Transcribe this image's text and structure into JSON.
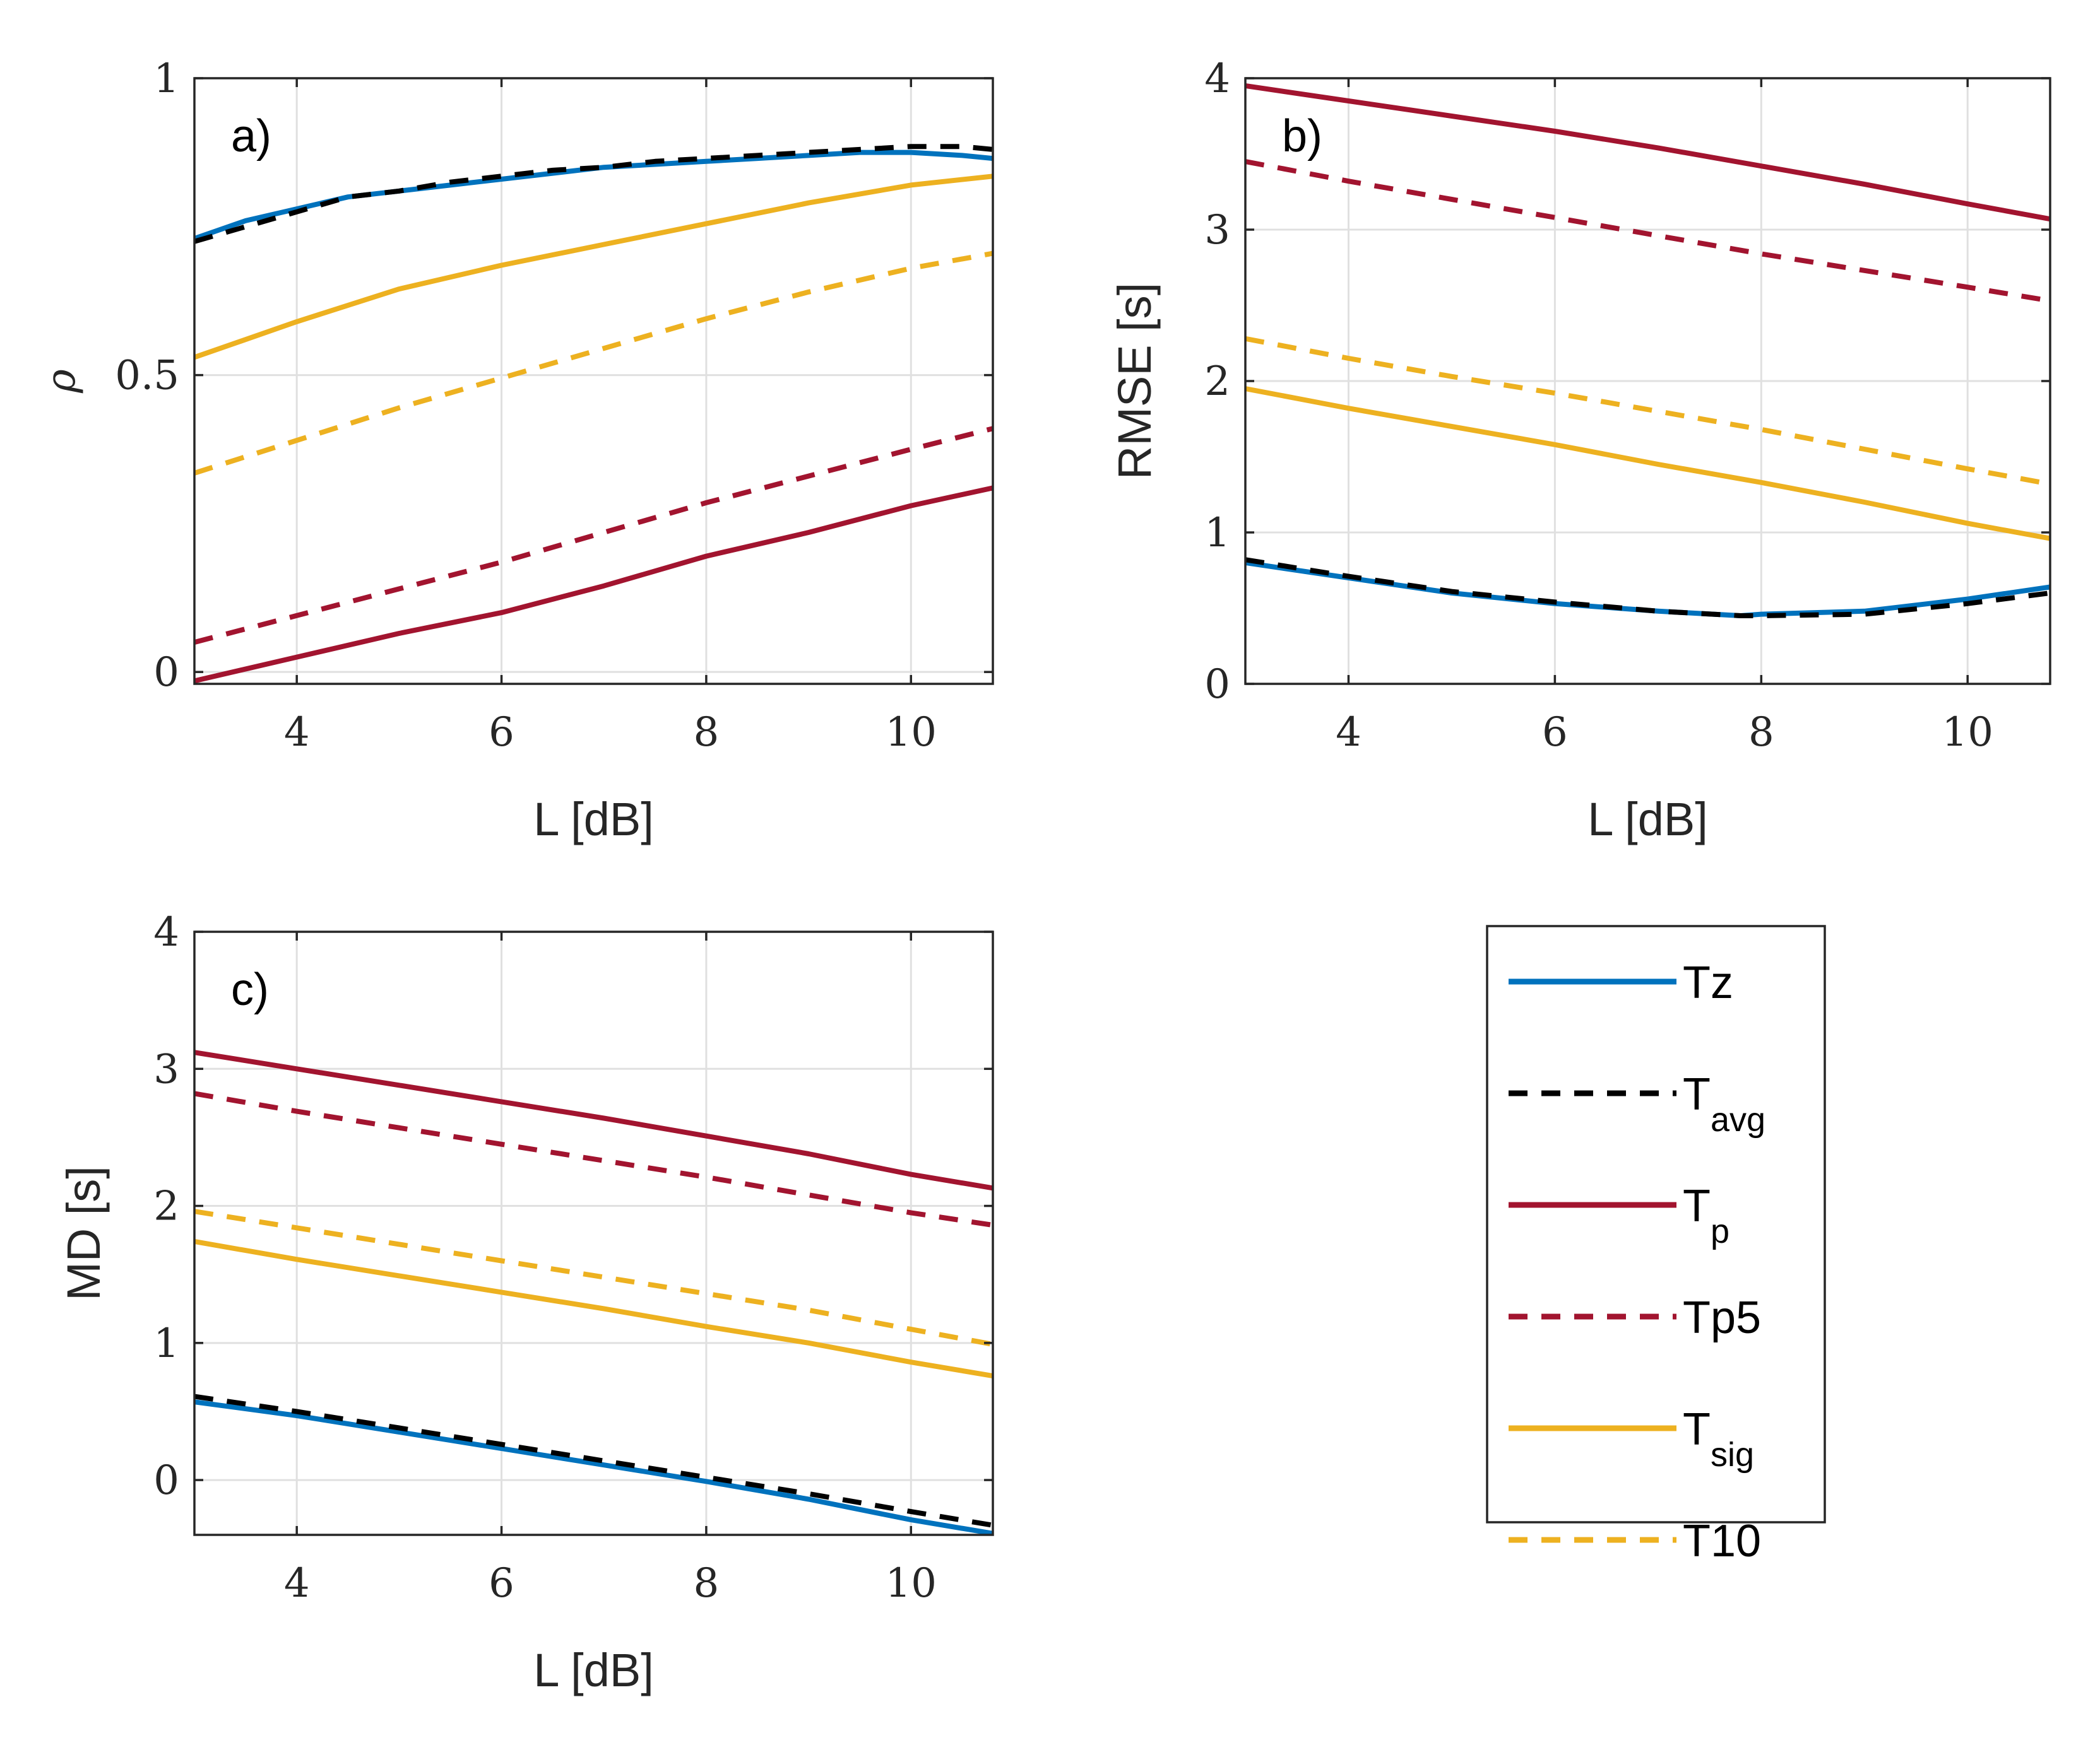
{
  "colors": {
    "Tz": "#0072BD",
    "Tavg": "#000000",
    "Tp": "#A2142F",
    "Tp5": "#A2142F",
    "Tsig": "#EDB120",
    "T10": "#EDB120"
  },
  "legend": {
    "placement": "bottom-right",
    "entries": [
      {
        "key": "Tz",
        "main": "Tz",
        "sub": "",
        "dashed": false
      },
      {
        "key": "Tavg",
        "main": "T",
        "sub": "avg",
        "dashed": true
      },
      {
        "key": "Tp",
        "main": "T",
        "sub": "p",
        "dashed": false
      },
      {
        "key": "Tp5",
        "main": "Tp5",
        "sub": "",
        "dashed": true
      },
      {
        "key": "Tsig",
        "main": "T",
        "sub": "sig",
        "dashed": false
      },
      {
        "key": "T10",
        "main": "T10",
        "sub": "",
        "dashed": true
      }
    ]
  },
  "chart_data": [
    {
      "type": "line",
      "panel": "a)",
      "xlabel": "L [dB]",
      "ylabel": "ρ",
      "xlim": [
        3,
        10.8
      ],
      "ylim": [
        -0.02,
        1.0
      ],
      "xticks": [
        4,
        6,
        8,
        10
      ],
      "yticks": [
        0,
        0.5,
        1
      ],
      "ytick_labels": [
        "0",
        "0.5",
        "1"
      ],
      "grid": true,
      "series": [
        {
          "key": "Tz",
          "dashed": false,
          "x": [
            3,
            3.5,
            4,
            4.5,
            5,
            5.5,
            6,
            6.5,
            7,
            7.5,
            8,
            8.5,
            9,
            9.5,
            10,
            10.5,
            10.8
          ],
          "y": [
            0.73,
            0.76,
            0.78,
            0.8,
            0.81,
            0.82,
            0.83,
            0.84,
            0.85,
            0.855,
            0.86,
            0.865,
            0.87,
            0.875,
            0.875,
            0.87,
            0.865
          ]
        },
        {
          "key": "Tavg",
          "dashed": true,
          "x": [
            3,
            3.5,
            4,
            4.5,
            5,
            5.5,
            6,
            6.5,
            7,
            7.5,
            8,
            8.5,
            9,
            9.5,
            10,
            10.5,
            10.8
          ],
          "y": [
            0.725,
            0.75,
            0.775,
            0.8,
            0.81,
            0.825,
            0.835,
            0.845,
            0.85,
            0.86,
            0.865,
            0.87,
            0.875,
            0.88,
            0.885,
            0.885,
            0.88
          ]
        },
        {
          "key": "Tp",
          "dashed": false,
          "x": [
            3,
            4,
            5,
            6,
            7,
            8,
            9,
            10,
            10.8
          ],
          "y": [
            -0.015,
            0.025,
            0.065,
            0.1,
            0.145,
            0.195,
            0.235,
            0.28,
            0.31
          ]
        },
        {
          "key": "Tp5",
          "dashed": true,
          "x": [
            3,
            4,
            5,
            6,
            7,
            8,
            9,
            10,
            10.8
          ],
          "y": [
            0.05,
            0.095,
            0.14,
            0.185,
            0.235,
            0.285,
            0.33,
            0.375,
            0.41
          ]
        },
        {
          "key": "Tsig",
          "dashed": false,
          "x": [
            3,
            4,
            5,
            6,
            7,
            8,
            9,
            10,
            10.8
          ],
          "y": [
            0.53,
            0.59,
            0.645,
            0.685,
            0.72,
            0.755,
            0.79,
            0.82,
            0.835
          ]
        },
        {
          "key": "T10",
          "dashed": true,
          "x": [
            3,
            4,
            5,
            6,
            7,
            8,
            9,
            10,
            10.8
          ],
          "y": [
            0.335,
            0.39,
            0.445,
            0.495,
            0.545,
            0.595,
            0.64,
            0.68,
            0.705
          ]
        }
      ]
    },
    {
      "type": "line",
      "panel": "b)",
      "xlabel": "L [dB]",
      "ylabel": "RMSE [s]",
      "xlim": [
        3,
        10.8
      ],
      "ylim": [
        0,
        4
      ],
      "xticks": [
        4,
        6,
        8,
        10
      ],
      "yticks": [
        0,
        1,
        2,
        3,
        4
      ],
      "ytick_labels": [
        "0",
        "1",
        "2",
        "3",
        "4"
      ],
      "grid": true,
      "series": [
        {
          "key": "Tz",
          "dashed": false,
          "x": [
            3,
            4,
            5,
            6,
            7,
            7.8,
            8,
            9,
            10,
            10.8
          ],
          "y": [
            0.8,
            0.7,
            0.6,
            0.53,
            0.48,
            0.45,
            0.46,
            0.48,
            0.56,
            0.64
          ]
        },
        {
          "key": "Tavg",
          "dashed": true,
          "x": [
            3,
            4,
            5,
            6,
            7,
            7.8,
            8,
            9,
            10,
            10.8
          ],
          "y": [
            0.82,
            0.71,
            0.61,
            0.54,
            0.48,
            0.45,
            0.45,
            0.46,
            0.53,
            0.6
          ]
        },
        {
          "key": "Tp",
          "dashed": false,
          "x": [
            3,
            4,
            5,
            6,
            7,
            8,
            9,
            10,
            10.8
          ],
          "y": [
            3.95,
            3.85,
            3.75,
            3.65,
            3.54,
            3.42,
            3.3,
            3.17,
            3.07
          ]
        },
        {
          "key": "Tp5",
          "dashed": true,
          "x": [
            3,
            4,
            5,
            6,
            7,
            8,
            9,
            10,
            10.8
          ],
          "y": [
            3.45,
            3.32,
            3.2,
            3.08,
            2.96,
            2.84,
            2.73,
            2.62,
            2.53
          ]
        },
        {
          "key": "Tsig",
          "dashed": false,
          "x": [
            3,
            4,
            5,
            6,
            7,
            8,
            9,
            10,
            10.8
          ],
          "y": [
            1.95,
            1.82,
            1.7,
            1.58,
            1.45,
            1.33,
            1.2,
            1.06,
            0.96
          ]
        },
        {
          "key": "T10",
          "dashed": true,
          "x": [
            3,
            4,
            5,
            6,
            7,
            8,
            9,
            10,
            10.8
          ],
          "y": [
            2.28,
            2.15,
            2.03,
            1.92,
            1.8,
            1.68,
            1.55,
            1.42,
            1.32
          ]
        }
      ]
    },
    {
      "type": "line",
      "panel": "c)",
      "xlabel": "L [dB]",
      "ylabel": "MD [s]",
      "xlim": [
        3,
        10.8
      ],
      "ylim": [
        -0.4,
        4
      ],
      "xticks": [
        4,
        6,
        8,
        10
      ],
      "yticks": [
        0,
        1,
        2,
        3,
        4
      ],
      "ytick_labels": [
        "0",
        "1",
        "2",
        "3",
        "4"
      ],
      "grid": true,
      "series": [
        {
          "key": "Tz",
          "dashed": false,
          "x": [
            3,
            4,
            5,
            6,
            7,
            8,
            9,
            10,
            10.8
          ],
          "y": [
            0.57,
            0.47,
            0.35,
            0.23,
            0.11,
            -0.01,
            -0.14,
            -0.29,
            -0.39
          ]
        },
        {
          "key": "Tavg",
          "dashed": true,
          "x": [
            3,
            4,
            5,
            6,
            7,
            8,
            9,
            10,
            10.8
          ],
          "y": [
            0.61,
            0.5,
            0.38,
            0.26,
            0.14,
            0.02,
            -0.1,
            -0.23,
            -0.33
          ]
        },
        {
          "key": "Tp",
          "dashed": false,
          "x": [
            3,
            4,
            5,
            6,
            7,
            8,
            9,
            10,
            10.8
          ],
          "y": [
            3.12,
            3.0,
            2.88,
            2.76,
            2.64,
            2.51,
            2.38,
            2.23,
            2.13
          ]
        },
        {
          "key": "Tp5",
          "dashed": true,
          "x": [
            3,
            4,
            5,
            6,
            7,
            8,
            9,
            10,
            10.8
          ],
          "y": [
            2.82,
            2.69,
            2.57,
            2.45,
            2.33,
            2.21,
            2.08,
            1.95,
            1.86
          ]
        },
        {
          "key": "Tsig",
          "dashed": false,
          "x": [
            3,
            4,
            5,
            6,
            7,
            8,
            9,
            10,
            10.8
          ],
          "y": [
            1.74,
            1.61,
            1.49,
            1.37,
            1.25,
            1.12,
            1.0,
            0.86,
            0.76
          ]
        },
        {
          "key": "T10",
          "dashed": true,
          "x": [
            3,
            4,
            5,
            6,
            7,
            8,
            9,
            10,
            10.8
          ],
          "y": [
            1.96,
            1.84,
            1.72,
            1.6,
            1.48,
            1.36,
            1.24,
            1.1,
            0.99
          ]
        }
      ]
    }
  ]
}
